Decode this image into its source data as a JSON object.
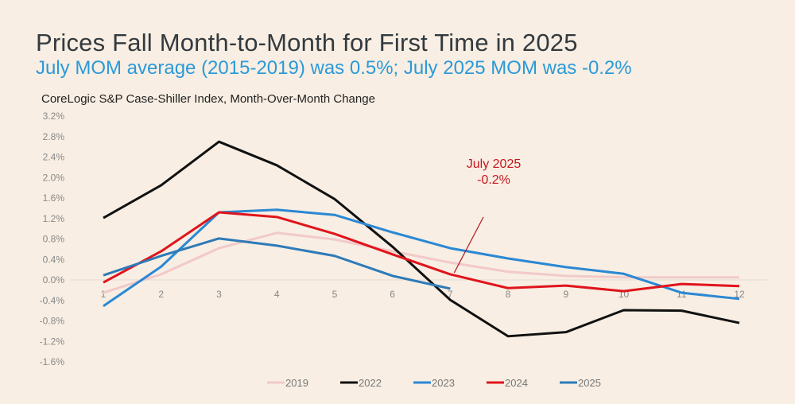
{
  "header": {
    "title": "Prices Fall Month-to-Month for First Time in 2025",
    "subtitle": "July MOM average (2015-2019) was 0.5%; July 2025 MOM was -0.2%"
  },
  "chart_data": {
    "type": "line",
    "title": "CoreLogic S&P Case-Shiller Index, Month-Over-Month Change",
    "xlabel": "",
    "ylabel": "",
    "x": [
      1,
      2,
      3,
      4,
      5,
      6,
      7,
      8,
      9,
      10,
      11,
      12
    ],
    "x_tick_labels": [
      "1",
      "2",
      "3",
      "4",
      "5",
      "6",
      "7",
      "8",
      "9",
      "10",
      "11",
      "12"
    ],
    "y_tick_labels": [
      "3.2%",
      "2.8%",
      "2.4%",
      "2.0%",
      "1.6%",
      "1.2%",
      "0.8%",
      "0.4%",
      "0.0%",
      "-0.4%",
      "-0.8%",
      "-1.2%",
      "-1.6%"
    ],
    "ylim": [
      -1.6,
      3.2
    ],
    "y_unit": "%",
    "grid": false,
    "legend_position": "bottom",
    "series": [
      {
        "name": "2019",
        "color": "#f2c9c9",
        "values": [
          -0.25,
          0.11,
          0.62,
          0.92,
          0.79,
          0.56,
          0.34,
          0.16,
          0.08,
          0.05,
          0.05,
          0.05
        ]
      },
      {
        "name": "2022",
        "color": "#111111",
        "values": [
          1.21,
          1.85,
          2.7,
          2.24,
          1.58,
          0.65,
          -0.39,
          -1.1,
          -1.02,
          -0.59,
          -0.6,
          -0.84
        ]
      },
      {
        "name": "2023",
        "color": "#2a88d4",
        "values": [
          -0.51,
          0.26,
          1.32,
          1.37,
          1.27,
          0.93,
          0.62,
          0.42,
          0.25,
          0.12,
          -0.25,
          -0.37
        ]
      },
      {
        "name": "2024",
        "color": "#e0141c",
        "values": [
          -0.05,
          0.56,
          1.32,
          1.23,
          0.9,
          0.5,
          0.11,
          -0.16,
          -0.11,
          -0.22,
          -0.08,
          -0.12
        ]
      },
      {
        "name": "2025",
        "color": "#2d7ab8",
        "values": [
          0.09,
          0.47,
          0.81,
          0.67,
          0.47,
          0.08,
          -0.17
        ]
      }
    ],
    "annotations": [
      {
        "text_line1": "July 2025",
        "text_line2": "-0.2%",
        "color": "#c8171e",
        "points_to": {
          "x": 7,
          "y": 0.11
        }
      }
    ]
  }
}
